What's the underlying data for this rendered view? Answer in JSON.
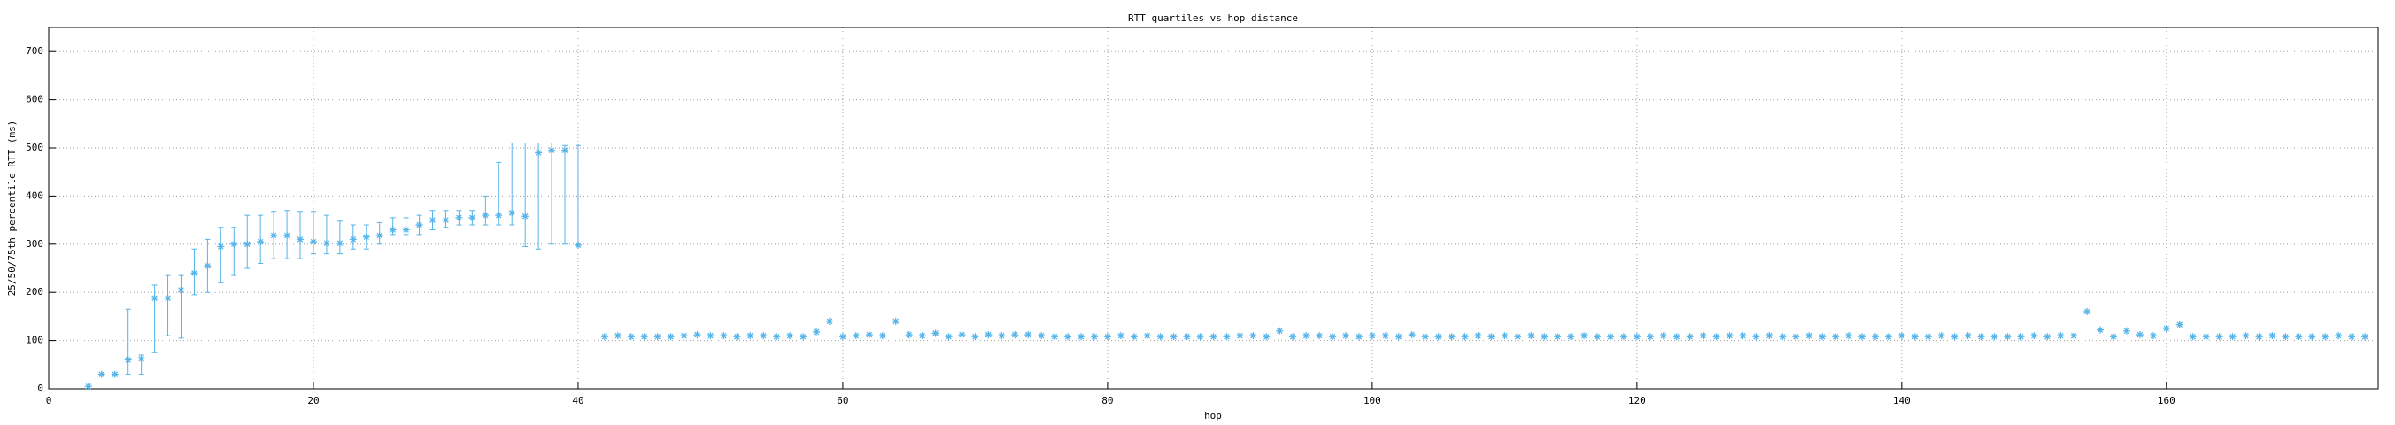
{
  "chart_data": {
    "type": "errorbar",
    "title": "RTT quartiles vs hop distance",
    "xlabel": "hop",
    "ylabel": "25/50/75th percentile RTT (ms)",
    "xlim": [
      0,
      176
    ],
    "xticks": [
      0,
      20,
      40,
      60,
      80,
      100,
      120,
      140,
      160
    ],
    "ylim": [
      0,
      750
    ],
    "yticks": [
      0,
      100,
      200,
      300,
      400,
      500,
      600,
      700
    ],
    "grid": true,
    "series": [
      {
        "color": "#56b4e9",
        "x": [
          3,
          4,
          5,
          6,
          7,
          8,
          9,
          10,
          11,
          12,
          13,
          14,
          15,
          16,
          17,
          18,
          19,
          20,
          21,
          22,
          23,
          24,
          25,
          26,
          27,
          28,
          29,
          30,
          31,
          32,
          33,
          34,
          35,
          36,
          37,
          38,
          39,
          40
        ],
        "values": [
          5,
          30,
          30,
          60,
          62,
          188,
          188,
          205,
          240,
          255,
          295,
          300,
          300,
          305,
          318,
          318,
          310,
          305,
          302,
          302,
          310,
          315,
          318,
          330,
          330,
          340,
          350,
          350,
          355,
          355,
          360,
          360,
          365,
          358,
          490,
          495,
          495,
          298
        ],
        "low": [
          null,
          null,
          null,
          30,
          30,
          75,
          110,
          105,
          195,
          200,
          220,
          235,
          250,
          260,
          270,
          270,
          270,
          280,
          280,
          280,
          290,
          290,
          300,
          320,
          320,
          320,
          330,
          335,
          340,
          340,
          340,
          340,
          340,
          295,
          290,
          300,
          300,
          298
        ],
        "high": [
          null,
          null,
          null,
          165,
          70,
          215,
          235,
          235,
          290,
          310,
          335,
          335,
          360,
          360,
          368,
          370,
          368,
          368,
          360,
          348,
          340,
          340,
          345,
          355,
          355,
          360,
          370,
          370,
          370,
          370,
          400,
          470,
          510,
          510,
          510,
          510,
          505,
          505
        ]
      },
      {
        "color": "#56b4e9",
        "x": [
          42,
          43,
          44,
          45,
          46,
          47,
          48,
          49,
          50,
          51,
          52,
          53,
          54,
          55,
          56,
          57,
          58,
          59,
          60,
          61,
          62,
          63,
          64,
          65,
          66,
          67,
          68,
          69,
          70,
          71,
          72,
          73,
          74,
          75,
          76,
          77,
          78,
          79,
          80,
          81,
          82,
          83,
          84,
          85,
          86,
          87,
          88,
          89,
          90,
          91,
          92,
          93,
          94,
          95,
          96,
          97,
          98,
          99,
          100,
          101,
          102,
          103,
          104,
          105,
          106,
          107,
          108,
          109,
          110,
          111,
          112,
          113,
          114,
          115,
          116,
          117,
          118,
          119,
          120,
          121,
          122,
          123,
          124,
          125,
          126,
          127,
          128,
          129,
          130,
          131,
          132,
          133,
          134,
          135,
          136,
          137,
          138,
          139,
          140,
          141,
          142,
          143,
          144,
          145,
          146,
          147,
          148,
          149,
          150,
          151,
          152,
          153,
          154,
          155,
          156,
          157,
          158,
          159,
          160,
          161,
          162,
          163,
          164,
          165,
          166,
          167,
          168,
          169,
          170,
          171,
          172,
          173,
          174,
          175
        ],
        "values": [
          108,
          110,
          108,
          108,
          108,
          108,
          110,
          112,
          110,
          110,
          108,
          110,
          110,
          108,
          110,
          108,
          118,
          140,
          108,
          110,
          112,
          110,
          140,
          112,
          110,
          115,
          108,
          112,
          108,
          112,
          110,
          112,
          112,
          110,
          108,
          108,
          108,
          108,
          108,
          110,
          108,
          110,
          108,
          108,
          108,
          108,
          108,
          108,
          110,
          110,
          108,
          120,
          108,
          110,
          110,
          108,
          110,
          108,
          110,
          110,
          108,
          112,
          108,
          108,
          108,
          108,
          110,
          108,
          110,
          108,
          110,
          108,
          108,
          108,
          110,
          108,
          108,
          108,
          108,
          108,
          110,
          108,
          108,
          110,
          108,
          110,
          110,
          108,
          110,
          108,
          108,
          110,
          108,
          108,
          110,
          108,
          108,
          108,
          110,
          108,
          108,
          110,
          108,
          110,
          108,
          108,
          108,
          108,
          110,
          108,
          110,
          110,
          160,
          122,
          108,
          120,
          112,
          110,
          125,
          133,
          108,
          108,
          108,
          108,
          110,
          108,
          110,
          108,
          108,
          108,
          108,
          110,
          108,
          108
        ]
      }
    ]
  }
}
